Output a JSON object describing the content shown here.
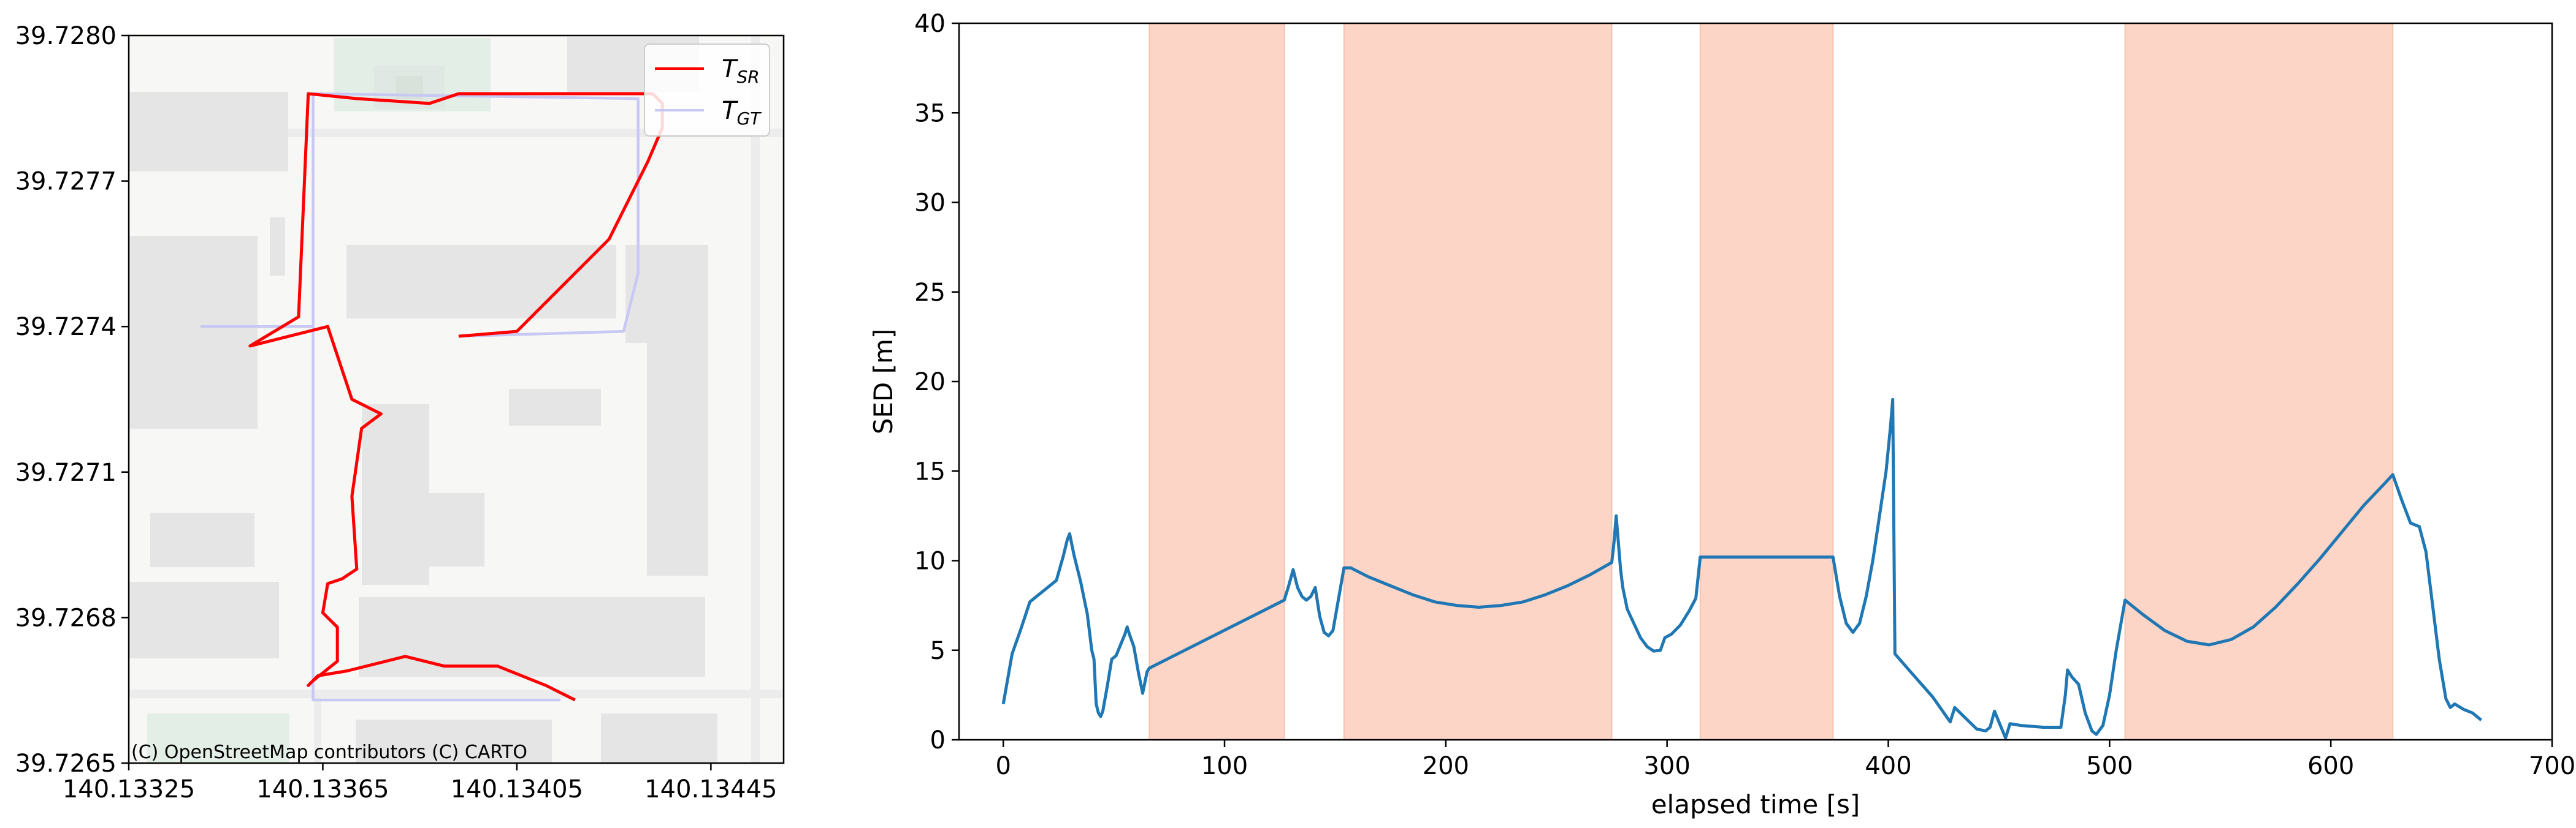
{
  "chart_data": [
    {
      "type": "line",
      "xlim": [
        140.13325,
        140.1346
      ],
      "ylim": [
        39.7265,
        39.728
      ],
      "x_ticks": [
        "140.13325",
        "140.13365",
        "140.13405",
        "140.13445"
      ],
      "x_tick_values": [
        140.13325,
        140.13365,
        140.13405,
        140.13445
      ],
      "y_ticks": [
        "39.7265",
        "39.7268",
        "39.7271",
        "39.7274",
        "39.7277",
        "39.7280"
      ],
      "y_tick_values": [
        39.7265,
        39.7268,
        39.7271,
        39.7274,
        39.7277,
        39.728
      ],
      "legend_position": "upper right",
      "legend": [
        {
          "main": "T",
          "sub": "SR",
          "color": "#ff0000"
        },
        {
          "main": "T",
          "sub": "GT",
          "color": "#c8c8f5"
        }
      ],
      "attribution": "(C) OpenStreetMap contributors (C) CARTO",
      "basemap": {
        "background": "#f7f7f6",
        "building_color": "#e5e5e5",
        "park_color": "#e3efe6",
        "road_color": "#ececec"
      },
      "series": [
        {
          "color": "#ff0000",
          "points": [
            [
              140.13417,
              39.72663
            ],
            [
              140.13411,
              39.72666
            ],
            [
              140.13401,
              39.7267
            ],
            [
              140.1339,
              39.7267
            ],
            [
              140.13382,
              39.72672
            ],
            [
              140.1337,
              39.72669
            ],
            [
              140.13364,
              39.72668
            ],
            [
              140.13362,
              39.72666
            ],
            [
              140.13363,
              39.72667
            ],
            [
              140.13368,
              39.72671
            ],
            [
              140.13368,
              39.72678
            ],
            [
              140.13365,
              39.72681
            ],
            [
              140.13366,
              39.72687
            ],
            [
              140.13369,
              39.72688
            ],
            [
              140.13372,
              39.7269
            ],
            [
              140.13371,
              39.72705
            ],
            [
              140.13373,
              39.72719
            ],
            [
              140.13377,
              39.72722
            ],
            [
              140.13371,
              39.72725
            ],
            [
              140.13366,
              39.7274
            ],
            [
              140.1335,
              39.72736
            ],
            [
              140.1336,
              39.72742
            ],
            [
              140.13362,
              39.72788
            ],
            [
              140.13372,
              39.72787
            ],
            [
              140.13387,
              39.72786
            ],
            [
              140.13393,
              39.72788
            ],
            [
              140.13433,
              39.72788
            ],
            [
              140.13435,
              39.72786
            ],
            [
              140.13435,
              39.72781
            ],
            [
              140.13432,
              39.72774
            ],
            [
              140.13424,
              39.72758
            ],
            [
              140.13405,
              39.72739
            ],
            [
              140.13393,
              39.72738
            ]
          ]
        },
        {
          "color": "#c8c8f5",
          "points": [
            [
              140.13414,
              39.72663
            ],
            [
              140.13363,
              39.72663
            ],
            [
              140.13363,
              39.7274
            ],
            [
              140.1334,
              39.7274
            ],
            [
              140.13363,
              39.7274
            ],
            [
              140.13363,
              39.72788
            ],
            [
              140.1343,
              39.72787
            ],
            [
              140.1343,
              39.72751
            ],
            [
              140.13427,
              39.72739
            ],
            [
              140.13393,
              39.72738
            ]
          ]
        }
      ]
    },
    {
      "type": "line",
      "xlabel": "elapsed time [s]",
      "ylabel": "SED [m]",
      "xlim": [
        -20,
        700
      ],
      "ylim": [
        0,
        40
      ],
      "x_ticks": [
        "0",
        "100",
        "200",
        "300",
        "400",
        "500",
        "600",
        "700"
      ],
      "x_tick_values": [
        0,
        100,
        200,
        300,
        400,
        500,
        600,
        700
      ],
      "y_ticks": [
        "0",
        "5",
        "10",
        "15",
        "20",
        "25",
        "30",
        "35",
        "40"
      ],
      "y_tick_values": [
        0,
        5,
        10,
        15,
        20,
        25,
        30,
        35,
        40
      ],
      "shaded_intervals": [
        [
          66,
          127
        ],
        [
          154,
          275
        ],
        [
          315,
          375
        ],
        [
          507,
          628
        ]
      ],
      "shade_color": "#fdd5c6",
      "series": [
        {
          "color": "#1f77b4",
          "points": [
            [
              0,
              2
            ],
            [
              4,
              4.8
            ],
            [
              8,
              6.2
            ],
            [
              12,
              7.7
            ],
            [
              16,
              8.1
            ],
            [
              20,
              8.5
            ],
            [
              24,
              8.9
            ],
            [
              27,
              10.2
            ],
            [
              29,
              11.2
            ],
            [
              30,
              11.5
            ],
            [
              32,
              10.3
            ],
            [
              35,
              8.8
            ],
            [
              38,
              7
            ],
            [
              40,
              5
            ],
            [
              41,
              4.5
            ],
            [
              42,
              2
            ],
            [
              43,
              1.5
            ],
            [
              44,
              1.3
            ],
            [
              45,
              1.6
            ],
            [
              47,
              3
            ],
            [
              49,
              4.5
            ],
            [
              51,
              4.7
            ],
            [
              53,
              5.3
            ],
            [
              55,
              5.9
            ],
            [
              56,
              6.3
            ],
            [
              57,
              5.9
            ],
            [
              59,
              5.2
            ],
            [
              61,
              3.8
            ],
            [
              63,
              2.6
            ],
            [
              65,
              3.8
            ],
            [
              66,
              4
            ],
            [
              127,
              7.8
            ],
            [
              129,
              8.6
            ],
            [
              131,
              9.5
            ],
            [
              133,
              8.5
            ],
            [
              135,
              8.0
            ],
            [
              137,
              7.8
            ],
            [
              139,
              8.0
            ],
            [
              141,
              8.5
            ],
            [
              143,
              6.9
            ],
            [
              145,
              6.0
            ],
            [
              147,
              5.8
            ],
            [
              149,
              6.1
            ],
            [
              152,
              8.2
            ],
            [
              154,
              9.6
            ],
            [
              157,
              9.6
            ],
            [
              165,
              9.1
            ],
            [
              175,
              8.6
            ],
            [
              185,
              8.1
            ],
            [
              195,
              7.7
            ],
            [
              205,
              7.5
            ],
            [
              215,
              7.4
            ],
            [
              225,
              7.5
            ],
            [
              235,
              7.7
            ],
            [
              245,
              8.1
            ],
            [
              255,
              8.6
            ],
            [
              265,
              9.2
            ],
            [
              275,
              9.9
            ],
            [
              276,
              11
            ],
            [
              277,
              12.5
            ],
            [
              278,
              11
            ],
            [
              279,
              9.5
            ],
            [
              280,
              8.5
            ],
            [
              282,
              7.3
            ],
            [
              285,
              6.5
            ],
            [
              288,
              5.7
            ],
            [
              291,
              5.2
            ],
            [
              294,
              4.95
            ],
            [
              297,
              5.0
            ],
            [
              299,
              5.7
            ],
            [
              302,
              5.9
            ],
            [
              306,
              6.4
            ],
            [
              310,
              7.2
            ],
            [
              313,
              7.9
            ],
            [
              315,
              10.2
            ],
            [
              375,
              10.2
            ],
            [
              378,
              8.0
            ],
            [
              381,
              6.5
            ],
            [
              384,
              6.0
            ],
            [
              387,
              6.5
            ],
            [
              390,
              8.0
            ],
            [
              393,
              10.0
            ],
            [
              396,
              12.5
            ],
            [
              399,
              15
            ],
            [
              401,
              17.5
            ],
            [
              402,
              19
            ],
            [
              403,
              4.8
            ],
            [
              410,
              3.8
            ],
            [
              420,
              2.4
            ],
            [
              428,
              1
            ],
            [
              430,
              1.8
            ],
            [
              435,
              1.2
            ],
            [
              440,
              0.6
            ],
            [
              444,
              0.5
            ],
            [
              446,
              0.7
            ],
            [
              448,
              1.6
            ],
            [
              450,
              1.0
            ],
            [
              453,
              0.1
            ],
            [
              455,
              0.9
            ],
            [
              460,
              0.8
            ],
            [
              470,
              0.7
            ],
            [
              478,
              0.7
            ],
            [
              480,
              2.5
            ],
            [
              481,
              3.9
            ],
            [
              483,
              3.5
            ],
            [
              486,
              3.1
            ],
            [
              489,
              1.5
            ],
            [
              492,
              0.5
            ],
            [
              494,
              0.3
            ],
            [
              497,
              0.8
            ],
            [
              500,
              2.5
            ],
            [
              503,
              5
            ],
            [
              507,
              7.8
            ],
            [
              515,
              7.0
            ],
            [
              525,
              6.1
            ],
            [
              535,
              5.5
            ],
            [
              545,
              5.3
            ],
            [
              555,
              5.6
            ],
            [
              565,
              6.3
            ],
            [
              575,
              7.4
            ],
            [
              585,
              8.7
            ],
            [
              595,
              10.1
            ],
            [
              605,
              11.6
            ],
            [
              615,
              13.1
            ],
            [
              625,
              14.4
            ],
            [
              628,
              14.8
            ],
            [
              632,
              13.4
            ],
            [
              636,
              12.1
            ],
            [
              640,
              11.9
            ],
            [
              643,
              10.5
            ],
            [
              646,
              7.5
            ],
            [
              649,
              4.5
            ],
            [
              652,
              2.3
            ],
            [
              654,
              1.8
            ],
            [
              656,
              2.0
            ],
            [
              660,
              1.7
            ],
            [
              664,
              1.5
            ],
            [
              668,
              1.1
            ]
          ]
        }
      ]
    }
  ]
}
